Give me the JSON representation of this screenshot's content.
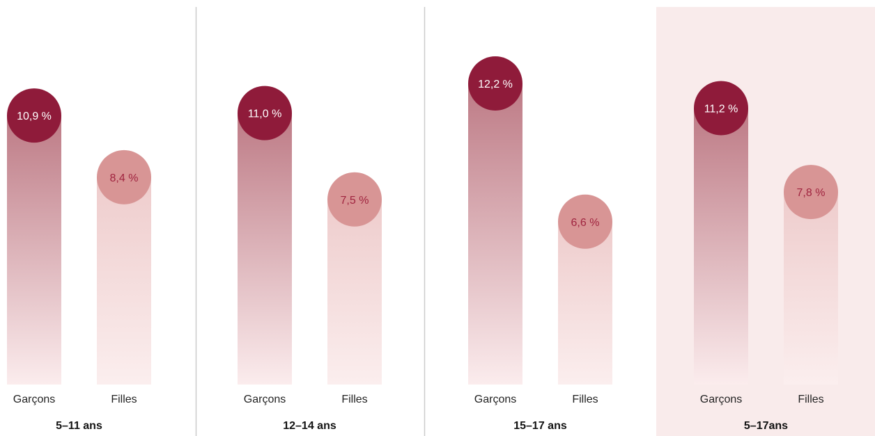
{
  "chart_data": {
    "type": "bar",
    "categories": [
      "5–11 ans",
      "12–14 ans",
      "15–17 ans",
      "5–17ans"
    ],
    "series": [
      {
        "name": "Garçons",
        "values": [
          10.9,
          11.0,
          12.2,
          11.2
        ],
        "labels": [
          "10,9 %",
          "11,0 %",
          "12,2 %",
          "11,2 %"
        ]
      },
      {
        "name": "Filles",
        "values": [
          8.4,
          7.5,
          6.6,
          7.8
        ],
        "labels": [
          "8,4 %",
          "7,5 %",
          "6,6 %",
          "7,8 %"
        ]
      }
    ],
    "highlighted_category": "5–17ans",
    "grid": false,
    "legend": "none"
  },
  "colors": {
    "boys": "#8f1b3a",
    "girls": "#d89595",
    "girls_text": "#a0243f",
    "highlight_panel": "#f9ebeb",
    "divider": "#cccccc"
  }
}
